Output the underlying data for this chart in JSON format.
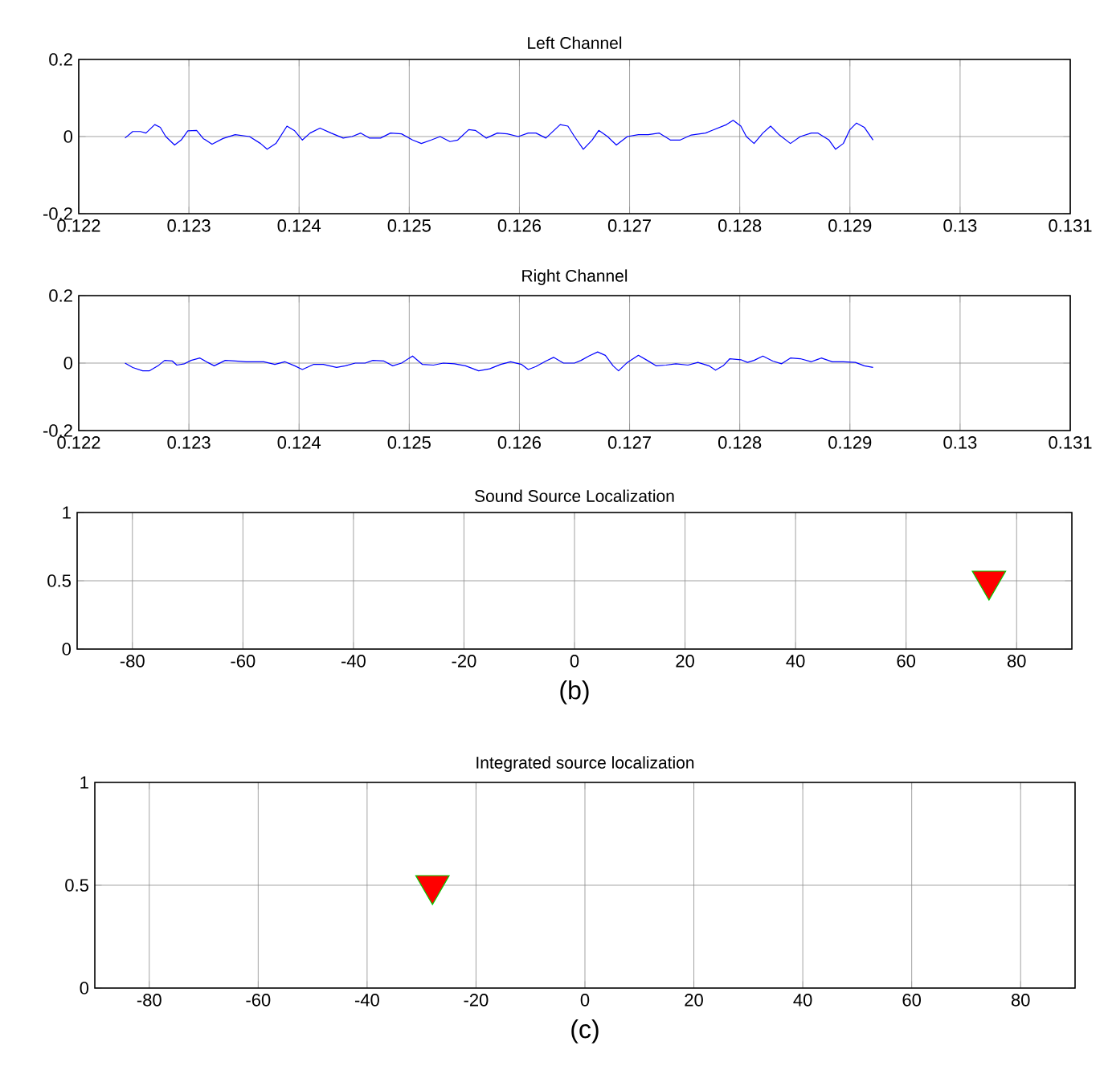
{
  "chart_data": [
    {
      "type": "line",
      "title": "Left Channel",
      "xlim": [
        0.122,
        0.131
      ],
      "ylim": [
        -0.2,
        0.2
      ],
      "xticks": [
        0.122,
        0.123,
        0.124,
        0.125,
        0.126,
        0.127,
        0.128,
        0.129,
        0.13,
        0.131
      ],
      "yticks": [
        -0.2,
        0,
        0.2
      ],
      "grid": true,
      "color": "#0000ff",
      "line_style": "solid",
      "x": [
        0.12242,
        0.12249,
        0.12256,
        0.12261,
        0.12269,
        0.12274,
        0.12279,
        0.12287,
        0.12293,
        0.12299,
        0.12307,
        0.12313,
        0.12321,
        0.12331,
        0.12342,
        0.12355,
        0.12365,
        0.12371,
        0.12379,
        0.12389,
        0.12396,
        0.12403,
        0.1241,
        0.12419,
        0.12429,
        0.1244,
        0.12448,
        0.12456,
        0.12464,
        0.12474,
        0.12483,
        0.12493,
        0.12503,
        0.12511,
        0.1252,
        0.12528,
        0.12537,
        0.12544,
        0.12554,
        0.1256,
        0.1257,
        0.1258,
        0.12589,
        0.12599,
        0.12608,
        0.12615,
        0.12624,
        0.12637,
        0.12644,
        0.1265,
        0.12658,
        0.12666,
        0.12672,
        0.1268,
        0.12688,
        0.12698,
        0.12708,
        0.12717,
        0.12727,
        0.12737,
        0.12746,
        0.12756,
        0.12769,
        0.12775,
        0.12788,
        0.12794,
        0.12801,
        0.12806,
        0.12813,
        0.12821,
        0.12828,
        0.12836,
        0.12846,
        0.12855,
        0.12865,
        0.12871,
        0.12881,
        0.12887,
        0.12894,
        0.129,
        0.12906,
        0.12913,
        0.12921
      ],
      "values": [
        -0.004,
        0.013,
        0.013,
        0.009,
        0.031,
        0.024,
        0,
        -0.022,
        -0.009,
        0.015,
        0.016,
        -0.005,
        -0.02,
        -0.005,
        0.005,
        0,
        -0.018,
        -0.033,
        -0.018,
        0.027,
        0.015,
        -0.009,
        0.009,
        0.022,
        0.009,
        -0.004,
        0,
        0.009,
        -0.004,
        -0.004,
        0.009,
        0.007,
        -0.009,
        -0.018,
        -0.009,
        0,
        -0.013,
        -0.009,
        0.018,
        0.016,
        -0.004,
        0.009,
        0.007,
        0,
        0.009,
        0.009,
        -0.004,
        0.031,
        0.027,
        0,
        -0.033,
        -0.009,
        0.016,
        0,
        -0.022,
        0,
        0.005,
        0.005,
        0.009,
        -0.009,
        -0.009,
        0.004,
        0.009,
        0.016,
        0.031,
        0.042,
        0.027,
        0,
        -0.018,
        0.009,
        0.027,
        0.004,
        -0.018,
        0,
        0.009,
        0.009,
        -0.009,
        -0.033,
        -0.018,
        0.018,
        0.035,
        0.024,
        -0.009
      ]
    },
    {
      "type": "line",
      "title": "Right Channel",
      "xlim": [
        0.122,
        0.131
      ],
      "ylim": [
        -0.2,
        0.2
      ],
      "xticks": [
        0.122,
        0.123,
        0.124,
        0.125,
        0.126,
        0.127,
        0.128,
        0.129,
        0.13,
        0.131
      ],
      "yticks": [
        -0.2,
        0,
        0.2
      ],
      "grid": true,
      "color": "#0000ff",
      "line_style": "solid",
      "x": [
        0.12242,
        0.12249,
        0.12258,
        0.12264,
        0.12272,
        0.12278,
        0.12285,
        0.12289,
        0.12296,
        0.12302,
        0.1231,
        0.12317,
        0.12323,
        0.12333,
        0.12342,
        0.12352,
        0.12368,
        0.12378,
        0.12387,
        0.12396,
        0.12403,
        0.12413,
        0.12422,
        0.12434,
        0.12442,
        0.12451,
        0.1246,
        0.12467,
        0.12477,
        0.12485,
        0.12493,
        0.12503,
        0.12512,
        0.12522,
        0.12531,
        0.12541,
        0.12551,
        0.12563,
        0.12573,
        0.12583,
        0.12592,
        0.12602,
        0.12608,
        0.12615,
        0.12624,
        0.12631,
        0.1264,
        0.1265,
        0.12656,
        0.12663,
        0.12671,
        0.12678,
        0.12685,
        0.1269,
        0.12698,
        0.12708,
        0.12716,
        0.12724,
        0.12733,
        0.12742,
        0.12753,
        0.12762,
        0.12772,
        0.12778,
        0.12785,
        0.12791,
        0.12801,
        0.12807,
        0.12813,
        0.12821,
        0.1283,
        0.12838,
        0.12846,
        0.12855,
        0.12865,
        0.12874,
        0.12884,
        0.12894,
        0.12905,
        0.12913,
        0.12921
      ],
      "values": [
        0,
        -0.013,
        -0.023,
        -0.023,
        -0.008,
        0.008,
        0.006,
        -0.006,
        -0.002,
        0.008,
        0.015,
        0.002,
        -0.008,
        0.008,
        0.006,
        0.004,
        0.004,
        -0.004,
        0.004,
        -0.008,
        -0.019,
        -0.004,
        -0.004,
        -0.013,
        -0.008,
        0,
        0,
        0.008,
        0.006,
        -0.008,
        0,
        0.021,
        -0.004,
        -0.006,
        0,
        -0.002,
        -0.008,
        -0.023,
        -0.017,
        -0.004,
        0.004,
        -0.004,
        -0.019,
        -0.01,
        0.006,
        0.017,
        0,
        0,
        0.008,
        0.021,
        0.033,
        0.023,
        -0.008,
        -0.023,
        0.002,
        0.023,
        0.008,
        -0.008,
        -0.006,
        -0.002,
        -0.006,
        0.002,
        -0.008,
        -0.021,
        -0.008,
        0.013,
        0.01,
        0.002,
        0.008,
        0.021,
        0.006,
        -0.002,
        0.015,
        0.013,
        0.004,
        0.015,
        0.004,
        0.004,
        0.002,
        -0.008,
        -0.013
      ]
    },
    {
      "type": "scatter",
      "title": "Sound Source Localization",
      "xlim": [
        -90,
        90
      ],
      "ylim": [
        0,
        1
      ],
      "xticks": [
        -80,
        -60,
        -40,
        -20,
        0,
        20,
        40,
        60,
        80
      ],
      "yticks": [
        0,
        0.5,
        1
      ],
      "grid": true,
      "color": "#ff0000",
      "marker": "triangle",
      "x": [
        75
      ],
      "values": [
        0.5
      ],
      "annotations": [
        "(b)"
      ]
    },
    {
      "type": "scatter",
      "title": "Integrated source localization",
      "xlim": [
        -90,
        90
      ],
      "ylim": [
        0,
        1
      ],
      "xticks": [
        -80,
        -60,
        -40,
        -20,
        0,
        20,
        40,
        60,
        80
      ],
      "yticks": [
        0,
        0.5,
        1
      ],
      "grid": true,
      "color": "#ff0000",
      "marker": "triangle",
      "x": [
        -28
      ],
      "values": [
        0.5
      ],
      "annotations": [
        "(c)"
      ]
    }
  ]
}
